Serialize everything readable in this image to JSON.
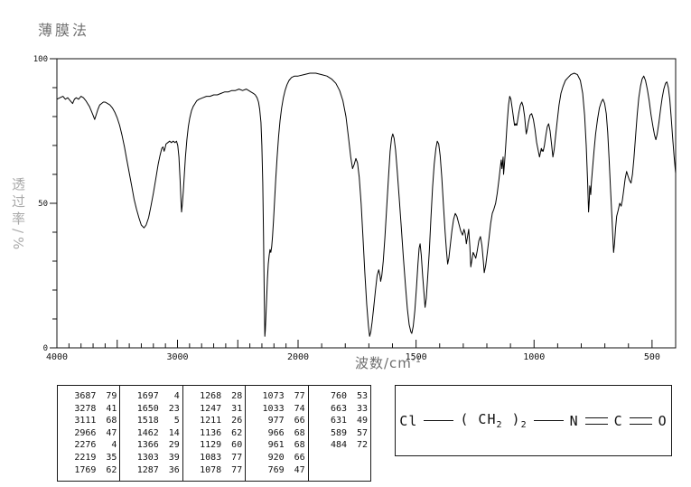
{
  "title": "薄膜法",
  "axes": {
    "y_label_vertical": "透过率/%",
    "x_label": "波数/cm",
    "x_label_sup": "-1",
    "y_tick_labels": [
      0,
      50,
      100
    ],
    "x_tick_labels": [
      4000,
      3000,
      2000,
      1500,
      1000,
      500
    ]
  },
  "colors": {
    "curve": "#000000",
    "axis": "#111111",
    "background": "#ffffff",
    "muted_label": "#a9a9a9"
  },
  "chart_data": {
    "type": "line",
    "title": "薄膜法",
    "xlabel": "波数/cm⁻¹",
    "ylabel": "透过率/%",
    "ylim": [
      0,
      100
    ],
    "x_axis": {
      "min": 400,
      "max": 4000,
      "reversed": true,
      "scale_break_at": 2000,
      "left_segment": "4000-2000 compressed",
      "right_segment": "2000-400 expanded",
      "minor_tick_step": 100,
      "major_tick_step": 500
    },
    "y_axis": {
      "minor_tick_step": 10,
      "labeled_ticks": [
        0,
        50,
        100
      ]
    },
    "grid": false,
    "legend": "none",
    "peaks": [
      [
        3687,
        79
      ],
      [
        3278,
        41
      ],
      [
        3111,
        68
      ],
      [
        2966,
        47
      ],
      [
        2276,
        4
      ],
      [
        2219,
        35
      ],
      [
        1769,
        62
      ],
      [
        1697,
        4
      ],
      [
        1650,
        23
      ],
      [
        1518,
        5
      ],
      [
        1462,
        14
      ],
      [
        1366,
        29
      ],
      [
        1303,
        39
      ],
      [
        1287,
        36
      ],
      [
        1268,
        28
      ],
      [
        1247,
        31
      ],
      [
        1211,
        26
      ],
      [
        1136,
        62
      ],
      [
        1129,
        60
      ],
      [
        1083,
        77
      ],
      [
        1078,
        77
      ],
      [
        1073,
        77
      ],
      [
        1033,
        74
      ],
      [
        977,
        66
      ],
      [
        966,
        68
      ],
      [
        961,
        68
      ],
      [
        920,
        66
      ],
      [
        769,
        47
      ],
      [
        760,
        53
      ],
      [
        663,
        33
      ],
      [
        631,
        49
      ],
      [
        589,
        57
      ],
      [
        484,
        72
      ]
    ],
    "curve_points": [
      [
        4000,
        86
      ],
      [
        3975,
        86.5
      ],
      [
        3950,
        87
      ],
      [
        3930,
        86
      ],
      [
        3910,
        86.5
      ],
      [
        3890,
        85.5
      ],
      [
        3870,
        84.5
      ],
      [
        3855,
        86
      ],
      [
        3840,
        86.5
      ],
      [
        3820,
        86
      ],
      [
        3800,
        87
      ],
      [
        3780,
        86.5
      ],
      [
        3760,
        85.5
      ],
      [
        3745,
        84.5
      ],
      [
        3730,
        83.5
      ],
      [
        3715,
        82
      ],
      [
        3700,
        80.5
      ],
      [
        3687,
        79
      ],
      [
        3675,
        80.5
      ],
      [
        3660,
        82.5
      ],
      [
        3645,
        84
      ],
      [
        3630,
        84.5
      ],
      [
        3615,
        85
      ],
      [
        3600,
        85
      ],
      [
        3580,
        84.5
      ],
      [
        3560,
        84
      ],
      [
        3540,
        83
      ],
      [
        3520,
        81.5
      ],
      [
        3500,
        79.5
      ],
      [
        3480,
        77
      ],
      [
        3460,
        73.5
      ],
      [
        3440,
        69.5
      ],
      [
        3420,
        65
      ],
      [
        3400,
        60.5
      ],
      [
        3380,
        56
      ],
      [
        3360,
        51.5
      ],
      [
        3340,
        48
      ],
      [
        3320,
        45
      ],
      [
        3300,
        42.5
      ],
      [
        3278,
        41.5
      ],
      [
        3260,
        42.5
      ],
      [
        3240,
        45
      ],
      [
        3220,
        49
      ],
      [
        3200,
        53.5
      ],
      [
        3180,
        58.5
      ],
      [
        3160,
        63.5
      ],
      [
        3145,
        66.5
      ],
      [
        3130,
        69
      ],
      [
        3120,
        69.5
      ],
      [
        3111,
        68
      ],
      [
        3103,
        69
      ],
      [
        3095,
        70.5
      ],
      [
        3080,
        71
      ],
      [
        3065,
        71.5
      ],
      [
        3050,
        71
      ],
      [
        3035,
        71.5
      ],
      [
        3020,
        71
      ],
      [
        3008,
        71.5
      ],
      [
        2998,
        70
      ],
      [
        2988,
        66
      ],
      [
        2978,
        58
      ],
      [
        2970,
        50
      ],
      [
        2966,
        47
      ],
      [
        2960,
        49.5
      ],
      [
        2952,
        54
      ],
      [
        2944,
        59.5
      ],
      [
        2934,
        66
      ],
      [
        2922,
        72
      ],
      [
        2910,
        76.5
      ],
      [
        2898,
        79.5
      ],
      [
        2884,
        82
      ],
      [
        2870,
        83.5
      ],
      [
        2855,
        84.5
      ],
      [
        2840,
        85.5
      ],
      [
        2820,
        86
      ],
      [
        2790,
        86.5
      ],
      [
        2760,
        87
      ],
      [
        2730,
        87
      ],
      [
        2700,
        87.5
      ],
      [
        2670,
        87.5
      ],
      [
        2640,
        88
      ],
      [
        2610,
        88.5
      ],
      [
        2580,
        88.5
      ],
      [
        2550,
        89
      ],
      [
        2520,
        89
      ],
      [
        2490,
        89.5
      ],
      [
        2460,
        89
      ],
      [
        2430,
        89.5
      ],
      [
        2410,
        89
      ],
      [
        2390,
        88.5
      ],
      [
        2370,
        88
      ],
      [
        2355,
        87.5
      ],
      [
        2340,
        86.5
      ],
      [
        2328,
        85
      ],
      [
        2318,
        82.5
      ],
      [
        2308,
        78
      ],
      [
        2300,
        70
      ],
      [
        2293,
        57
      ],
      [
        2287,
        40
      ],
      [
        2282,
        22
      ],
      [
        2278,
        10
      ],
      [
        2276,
        4
      ],
      [
        2272,
        6
      ],
      [
        2267,
        11
      ],
      [
        2261,
        17
      ],
      [
        2254,
        24
      ],
      [
        2247,
        29
      ],
      [
        2240,
        32
      ],
      [
        2233,
        34
      ],
      [
        2226,
        33
      ],
      [
        2219,
        35
      ],
      [
        2212,
        38.5
      ],
      [
        2204,
        44
      ],
      [
        2195,
        51
      ],
      [
        2185,
        58.5
      ],
      [
        2174,
        66
      ],
      [
        2162,
        73
      ],
      [
        2150,
        78.5
      ],
      [
        2136,
        83
      ],
      [
        2122,
        86.5
      ],
      [
        2108,
        89
      ],
      [
        2092,
        91
      ],
      [
        2075,
        92.5
      ],
      [
        2055,
        93.5
      ],
      [
        2030,
        94
      ],
      [
        2000,
        94
      ],
      [
        1975,
        94.5
      ],
      [
        1950,
        95
      ],
      [
        1925,
        95
      ],
      [
        1900,
        94.5
      ],
      [
        1878,
        94
      ],
      [
        1858,
        93
      ],
      [
        1840,
        91.5
      ],
      [
        1824,
        89
      ],
      [
        1810,
        85.5
      ],
      [
        1797,
        80
      ],
      [
        1786,
        72.5
      ],
      [
        1777,
        66
      ],
      [
        1769,
        62
      ],
      [
        1762,
        63.5
      ],
      [
        1755,
        65.5
      ],
      [
        1748,
        64
      ],
      [
        1741,
        59
      ],
      [
        1733,
        50
      ],
      [
        1725,
        38.5
      ],
      [
        1717,
        26
      ],
      [
        1709,
        15
      ],
      [
        1702,
        7.5
      ],
      [
        1697,
        4
      ],
      [
        1692,
        5.5
      ],
      [
        1686,
        9
      ],
      [
        1679,
        14.5
      ],
      [
        1672,
        20
      ],
      [
        1665,
        25
      ],
      [
        1658,
        27
      ],
      [
        1653,
        25
      ],
      [
        1650,
        23
      ],
      [
        1645,
        25
      ],
      [
        1639,
        30
      ],
      [
        1632,
        38
      ],
      [
        1625,
        48
      ],
      [
        1617,
        59
      ],
      [
        1610,
        68
      ],
      [
        1604,
        72.5
      ],
      [
        1599,
        74
      ],
      [
        1593,
        72.5
      ],
      [
        1587,
        68.5
      ],
      [
        1580,
        61.5
      ],
      [
        1572,
        52.5
      ],
      [
        1563,
        42
      ],
      [
        1554,
        31.5
      ],
      [
        1545,
        21.5
      ],
      [
        1537,
        13.5
      ],
      [
        1529,
        8
      ],
      [
        1522,
        5.5
      ],
      [
        1518,
        5
      ],
      [
        1512,
        7.5
      ],
      [
        1505,
        13
      ],
      [
        1498,
        21
      ],
      [
        1492,
        29
      ],
      [
        1487,
        34.5
      ],
      [
        1483,
        36
      ],
      [
        1478,
        32
      ],
      [
        1472,
        25
      ],
      [
        1466,
        18.5
      ],
      [
        1462,
        14
      ],
      [
        1457,
        17
      ],
      [
        1451,
        24
      ],
      [
        1444,
        33.5
      ],
      [
        1437,
        45
      ],
      [
        1430,
        55.5
      ],
      [
        1423,
        63.5
      ],
      [
        1416,
        69
      ],
      [
        1410,
        71.5
      ],
      [
        1404,
        70.5
      ],
      [
        1398,
        66.5
      ],
      [
        1391,
        59
      ],
      [
        1384,
        49.5
      ],
      [
        1377,
        40
      ],
      [
        1371,
        33.5
      ],
      [
        1366,
        29
      ],
      [
        1361,
        31
      ],
      [
        1355,
        35.5
      ],
      [
        1348,
        40.5
      ],
      [
        1341,
        44.5
      ],
      [
        1334,
        46.5
      ],
      [
        1327,
        45.5
      ],
      [
        1319,
        43
      ],
      [
        1311,
        40.5
      ],
      [
        1303,
        39
      ],
      [
        1297,
        41
      ],
      [
        1292,
        39.5
      ],
      [
        1287,
        36
      ],
      [
        1282,
        38.5
      ],
      [
        1277,
        41
      ],
      [
        1272,
        35
      ],
      [
        1268,
        28
      ],
      [
        1263,
        30.5
      ],
      [
        1258,
        33
      ],
      [
        1252,
        32
      ],
      [
        1247,
        31
      ],
      [
        1241,
        33.5
      ],
      [
        1234,
        37
      ],
      [
        1227,
        38.5
      ],
      [
        1221,
        35.5
      ],
      [
        1215,
        30
      ],
      [
        1211,
        26
      ],
      [
        1205,
        28.5
      ],
      [
        1198,
        33
      ],
      [
        1191,
        38
      ],
      [
        1184,
        43
      ],
      [
        1177,
        46.5
      ],
      [
        1170,
        48
      ],
      [
        1163,
        50
      ],
      [
        1156,
        53.5
      ],
      [
        1149,
        58
      ],
      [
        1143,
        62.5
      ],
      [
        1139,
        65
      ],
      [
        1136,
        62
      ],
      [
        1133,
        64.5
      ],
      [
        1131,
        66
      ],
      [
        1129,
        60
      ],
      [
        1125,
        64
      ],
      [
        1120,
        70
      ],
      [
        1114,
        78
      ],
      [
        1108,
        84
      ],
      [
        1103,
        87
      ],
      [
        1098,
        86
      ],
      [
        1093,
        83
      ],
      [
        1088,
        80
      ],
      [
        1083,
        77
      ],
      [
        1081,
        77.5
      ],
      [
        1078,
        77
      ],
      [
        1076,
        77.5
      ],
      [
        1073,
        77
      ],
      [
        1069,
        79
      ],
      [
        1064,
        81.5
      ],
      [
        1058,
        84
      ],
      [
        1052,
        85
      ],
      [
        1046,
        83.5
      ],
      [
        1040,
        80
      ],
      [
        1036,
        76.5
      ],
      [
        1033,
        74
      ],
      [
        1029,
        75.5
      ],
      [
        1024,
        78
      ],
      [
        1017,
        80.5
      ],
      [
        1010,
        81
      ],
      [
        1003,
        79
      ],
      [
        996,
        75.5
      ],
      [
        989,
        71
      ],
      [
        983,
        68.5
      ],
      [
        977,
        66
      ],
      [
        973,
        67.5
      ],
      [
        969,
        69
      ],
      [
        966,
        68
      ],
      [
        963,
        68.5
      ],
      [
        961,
        68
      ],
      [
        956,
        70
      ],
      [
        950,
        73.5
      ],
      [
        944,
        76.5
      ],
      [
        938,
        77.5
      ],
      [
        932,
        75
      ],
      [
        926,
        70.5
      ],
      [
        920,
        66
      ],
      [
        915,
        68.5
      ],
      [
        909,
        73
      ],
      [
        902,
        78.5
      ],
      [
        894,
        84
      ],
      [
        886,
        88
      ],
      [
        877,
        90.5
      ],
      [
        867,
        92.5
      ],
      [
        856,
        93.5
      ],
      [
        844,
        94.5
      ],
      [
        830,
        95
      ],
      [
        816,
        94.5
      ],
      [
        804,
        92.5
      ],
      [
        794,
        88
      ],
      [
        786,
        80.5
      ],
      [
        779,
        70
      ],
      [
        773,
        57
      ],
      [
        769,
        47
      ],
      [
        766,
        51
      ],
      [
        764,
        56
      ],
      [
        762,
        55
      ],
      [
        760,
        53
      ],
      [
        757,
        57
      ],
      [
        752,
        62
      ],
      [
        746,
        68
      ],
      [
        739,
        74
      ],
      [
        731,
        79
      ],
      [
        723,
        83
      ],
      [
        715,
        85
      ],
      [
        708,
        86
      ],
      [
        701,
        84.5
      ],
      [
        694,
        81
      ],
      [
        688,
        74.5
      ],
      [
        682,
        65.5
      ],
      [
        676,
        55
      ],
      [
        670,
        45
      ],
      [
        666,
        38
      ],
      [
        663,
        33
      ],
      [
        659,
        36
      ],
      [
        655,
        41
      ],
      [
        650,
        45.5
      ],
      [
        644,
        47.5
      ],
      [
        637,
        50
      ],
      [
        631,
        49
      ],
      [
        626,
        51
      ],
      [
        620,
        54.5
      ],
      [
        614,
        58.5
      ],
      [
        608,
        61
      ],
      [
        602,
        59.5
      ],
      [
        596,
        58
      ],
      [
        589,
        57
      ],
      [
        583,
        60
      ],
      [
        577,
        65.5
      ],
      [
        570,
        73
      ],
      [
        563,
        80.5
      ],
      [
        556,
        86.5
      ],
      [
        549,
        90.5
      ],
      [
        542,
        93
      ],
      [
        535,
        94
      ],
      [
        528,
        92.5
      ],
      [
        520,
        89.5
      ],
      [
        512,
        85.5
      ],
      [
        504,
        80.5
      ],
      [
        496,
        76.5
      ],
      [
        489,
        73.5
      ],
      [
        484,
        72
      ],
      [
        478,
        74
      ],
      [
        471,
        78
      ],
      [
        464,
        82.5
      ],
      [
        457,
        86.5
      ],
      [
        450,
        89.5
      ],
      [
        443,
        91.5
      ],
      [
        437,
        92
      ],
      [
        431,
        90
      ],
      [
        425,
        86
      ],
      [
        419,
        80
      ],
      [
        413,
        73
      ],
      [
        407,
        66.5
      ],
      [
        402,
        62
      ],
      [
        400,
        60.5
      ]
    ]
  },
  "structure": {
    "formula_text": "Cl-(CH2)2-N=C=O",
    "cl": "Cl",
    "open_paren": "(",
    "ch": "CH",
    "ch_sub": "2",
    "close_paren": ")",
    "paren_sub": "2",
    "n": "N",
    "c": "C",
    "o": "O"
  }
}
